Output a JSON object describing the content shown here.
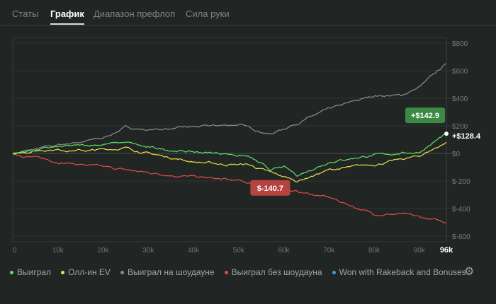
{
  "tabs": [
    {
      "label": "Статы"
    },
    {
      "label": "График"
    },
    {
      "label": "Диапазон префлоп"
    },
    {
      "label": "Сила руки"
    }
  ],
  "active_tab": "График",
  "chart_data": {
    "type": "line",
    "xlabel": "",
    "ylabel": "",
    "xlim": [
      0,
      96
    ],
    "ylim": [
      -600,
      800
    ],
    "x_ticks": [
      "0",
      "10k",
      "20k",
      "30k",
      "40k",
      "50k",
      "60k",
      "70k",
      "80k",
      "90k"
    ],
    "x_end_label": "96k",
    "y_ticks": [
      "$800",
      "$600",
      "$400",
      "$200",
      "$0",
      "$-200",
      "$-400",
      "$-600"
    ],
    "y_tick_values": [
      800,
      600,
      400,
      200,
      0,
      -200,
      -400,
      -600
    ],
    "series": [
      {
        "name": "Выиграл",
        "color": "#5ee06a",
        "x": [
          0,
          8,
          17,
          25,
          30,
          40,
          47,
          52,
          57,
          60,
          63,
          70,
          78,
          85,
          90,
          96
        ],
        "y": [
          0,
          40,
          60,
          80,
          40,
          10,
          0,
          -20,
          -120,
          -100,
          -160,
          -60,
          -20,
          0,
          10,
          142.9
        ]
      },
      {
        "name": "Олл-ин EV",
        "color": "#e8e04a",
        "x": [
          0,
          8,
          17,
          25,
          30,
          40,
          47,
          52,
          57,
          63,
          70,
          80,
          90,
          96
        ],
        "y": [
          0,
          30,
          20,
          40,
          0,
          -60,
          -80,
          -80,
          -140,
          -200,
          -120,
          -80,
          -20,
          80
        ]
      },
      {
        "name": "Выиграл на шоудауне",
        "color": "#8a8d8b",
        "x": [
          0,
          10,
          20,
          25,
          30,
          40,
          50,
          57,
          60,
          70,
          80,
          86,
          90,
          96
        ],
        "y": [
          0,
          60,
          110,
          190,
          170,
          190,
          210,
          140,
          180,
          320,
          420,
          420,
          480,
          650
        ]
      },
      {
        "name": "Выиграл без шоудауна",
        "color": "#e24b48",
        "x": [
          0,
          10,
          20,
          30,
          40,
          50,
          56,
          60,
          70,
          80,
          86,
          96
        ],
        "y": [
          0,
          -60,
          -100,
          -140,
          -170,
          -200,
          -240,
          -260,
          -320,
          -440,
          -440,
          -500
        ]
      },
      {
        "name": "Won with Rakeback and Bonuses",
        "color": "#3aa0e0",
        "x": [],
        "y": []
      }
    ],
    "annotations": [
      {
        "text": "+$142.9",
        "x": 96,
        "y": 142.9,
        "color": "#3a8a44"
      },
      {
        "text": "+$128.4",
        "x": 96,
        "y": 128.4,
        "color": "#ffffff"
      },
      {
        "text": "$-140.7",
        "x": 57,
        "y": -250,
        "color": "#b5433f"
      }
    ],
    "grid": true,
    "legend": "bottom"
  }
}
